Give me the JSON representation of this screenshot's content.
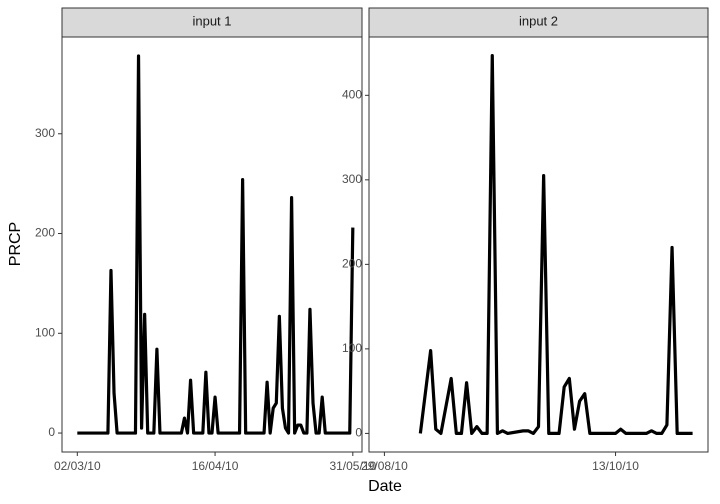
{
  "xlabel": "Date",
  "ylabel": "PRCP",
  "chart_data": [
    {
      "type": "line",
      "title": "input 1",
      "color": "#000000",
      "x": [
        "02/03/10",
        "12/03/10",
        "13/03/10",
        "14/03/10",
        "15/03/10",
        "21/03/10",
        "22/03/10",
        "23/03/10",
        "24/03/10",
        "25/03/10",
        "27/03/10",
        "28/03/10",
        "29/03/10",
        "05/04/10",
        "06/04/10",
        "07/04/10",
        "08/04/10",
        "09/04/10",
        "12/04/10",
        "13/04/10",
        "14/04/10",
        "15/04/10",
        "16/04/10",
        "17/04/10",
        "24/04/10",
        "25/04/10",
        "26/04/10",
        "02/05/10",
        "03/05/10",
        "04/05/10",
        "05/05/10",
        "06/05/10",
        "07/05/10",
        "08/05/10",
        "09/05/10",
        "10/05/10",
        "11/05/10",
        "12/05/10",
        "13/05/10",
        "14/05/10",
        "15/05/10",
        "16/05/10",
        "17/05/10",
        "18/05/10",
        "19/05/10",
        "20/05/10",
        "21/05/10",
        "22/05/10",
        "30/05/10",
        "31/05/10"
      ],
      "values": [
        0,
        0,
        163,
        40,
        0,
        0,
        378,
        5,
        119,
        0,
        0,
        84,
        0,
        0,
        15,
        0,
        53,
        0,
        0,
        61,
        0,
        0,
        36,
        0,
        0,
        254,
        0,
        0,
        51,
        0,
        25,
        30,
        117,
        25,
        5,
        0,
        236,
        0,
        8,
        8,
        0,
        0,
        124,
        30,
        0,
        0,
        36,
        0,
        0,
        206
      ],
      "xlim": [
        "25/02/10",
        "03/06/10"
      ],
      "xticks": [
        "02/03/10",
        "16/04/10",
        "31/05/10"
      ],
      "ylim": [
        -19,
        397
      ],
      "yticks": [
        0,
        100,
        200,
        300
      ]
    },
    {
      "type": "line",
      "title": "input 2",
      "color": "#000000",
      "x": [
        "05/09/10",
        "07/09/10",
        "08/09/10",
        "09/09/10",
        "11/09/10",
        "12/09/10",
        "13/09/10",
        "14/09/10",
        "15/09/10",
        "16/09/10",
        "17/09/10",
        "18/09/10",
        "19/09/10",
        "20/09/10",
        "21/09/10",
        "22/09/10",
        "25/09/10",
        "26/09/10",
        "27/09/10",
        "28/09/10",
        "29/09/10",
        "30/09/10",
        "02/10/10",
        "03/10/10",
        "04/10/10",
        "05/10/10",
        "06/10/10",
        "07/10/10",
        "08/10/10",
        "13/10/10",
        "14/10/10",
        "15/10/10",
        "19/10/10",
        "20/10/10",
        "21/10/10",
        "22/10/10",
        "23/10/10",
        "24/10/10",
        "25/10/10",
        "28/10/10"
      ],
      "values": [
        0,
        98,
        5,
        0,
        65,
        0,
        0,
        60,
        0,
        8,
        0,
        0,
        447,
        0,
        3,
        0,
        3,
        3,
        0,
        8,
        305,
        0,
        0,
        55,
        65,
        5,
        38,
        47,
        0,
        0,
        5,
        0,
        0,
        3,
        0,
        0,
        10,
        220,
        0,
        0
      ],
      "xlim": [
        "26/08/10",
        "31/10/10"
      ],
      "xticks": [
        "29/08/10",
        "13/10/10"
      ],
      "ylim": [
        -22,
        469
      ],
      "yticks": [
        0,
        100,
        200,
        300,
        400
      ]
    }
  ]
}
